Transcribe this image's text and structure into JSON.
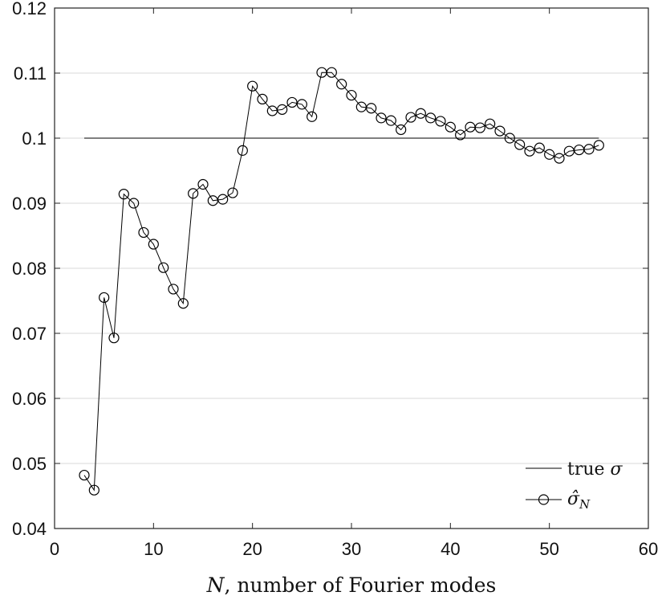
{
  "chart_data": {
    "type": "line",
    "title": "",
    "xlabel": "N, number of Fourier modes",
    "xlabel_italic": "N",
    "xlabel_rest": ", number of Fourier modes",
    "ylabel": "",
    "xlim": [
      0,
      60
    ],
    "ylim": [
      0.04,
      0.12
    ],
    "xticks": [
      0,
      10,
      20,
      30,
      40,
      50,
      60
    ],
    "xtick_labels": [
      "0",
      "10",
      "20",
      "30",
      "40",
      "50",
      "60"
    ],
    "yticks": [
      0.04,
      0.05,
      0.06,
      0.07,
      0.08,
      0.09,
      0.1,
      0.11,
      0.12
    ],
    "ytick_labels": [
      "0.04",
      "0.05",
      "0.06",
      "0.07",
      "0.08",
      "0.09",
      "0.1",
      "0.11",
      "0.12"
    ],
    "grid": "horizontal",
    "legend_position": "bottom-right",
    "series": [
      {
        "name": "true σ",
        "legend_main": "true ",
        "legend_symbol": "σ",
        "style": "line",
        "color": "#000000",
        "x": [
          3,
          55
        ],
        "y": [
          0.1,
          0.1
        ]
      },
      {
        "name": "σ̂_N",
        "legend_main": "σ̂",
        "legend_sub": "N",
        "style": "line-circle",
        "color": "#000000",
        "x": [
          3,
          4,
          5,
          6,
          7,
          8,
          9,
          10,
          11,
          12,
          13,
          14,
          15,
          16,
          17,
          18,
          19,
          20,
          21,
          22,
          23,
          24,
          25,
          26,
          27,
          28,
          29,
          30,
          31,
          32,
          33,
          34,
          35,
          36,
          37,
          38,
          39,
          40,
          41,
          42,
          43,
          44,
          45,
          46,
          47,
          48,
          49,
          50,
          51,
          52,
          53,
          54,
          55
        ],
        "y": [
          0.0482,
          0.0459,
          0.0755,
          0.0693,
          0.0914,
          0.09,
          0.0855,
          0.0837,
          0.0801,
          0.0768,
          0.0746,
          0.0915,
          0.0929,
          0.0904,
          0.0906,
          0.0916,
          0.0981,
          0.108,
          0.106,
          0.1042,
          0.1044,
          0.1055,
          0.1052,
          0.1033,
          0.1101,
          0.1101,
          0.1083,
          0.1066,
          0.1048,
          0.1046,
          0.1031,
          0.1027,
          0.1013,
          0.1032,
          0.1038,
          0.1031,
          0.1026,
          0.1017,
          0.1005,
          0.1017,
          0.1016,
          0.1022,
          0.1011,
          0.1,
          0.099,
          0.098,
          0.0985,
          0.0975,
          0.0969,
          0.098,
          0.0982,
          0.0983,
          0.0989
        ]
      }
    ]
  }
}
